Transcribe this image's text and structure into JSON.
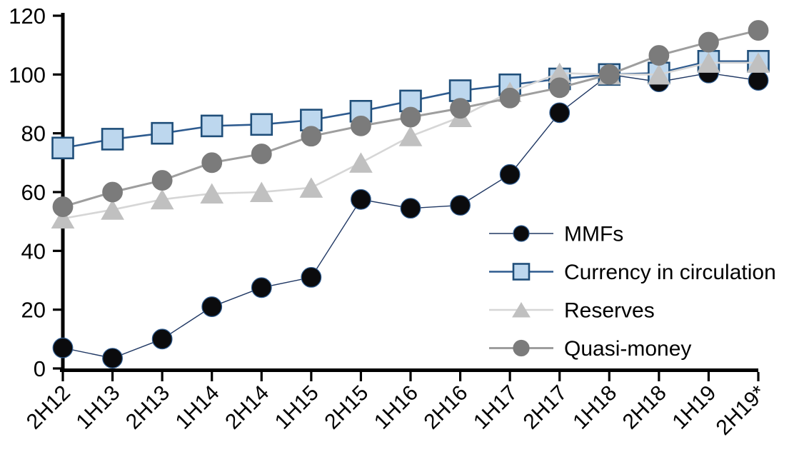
{
  "chart_data": {
    "type": "line",
    "title": "",
    "xlabel": "",
    "ylabel": "",
    "categories": [
      "2H12",
      "1H13",
      "2H13",
      "1H14",
      "2H14",
      "1H15",
      "2H15",
      "1H16",
      "2H16",
      "1H17",
      "2H17",
      "1H18",
      "2H18",
      "1H19",
      "2H19*"
    ],
    "series": [
      {
        "name": "MMFs",
        "marker": "circle",
        "marker_color": "#0b0b0d",
        "marker_edge": "#2E5B8F",
        "line_color": "#203864",
        "line_width": 1.4,
        "values": [
          7,
          3.5,
          10,
          21,
          27.5,
          31,
          57.5,
          54.5,
          55.5,
          66,
          87,
          100,
          97.5,
          100.5,
          98
        ]
      },
      {
        "name": "Currency in circulation",
        "marker": "square",
        "marker_color": "#BDD7EE",
        "marker_edge": "#1F4E79",
        "line_color": "#2E5B8F",
        "line_width": 2.6,
        "values": [
          75,
          78,
          80,
          82.5,
          83,
          84.5,
          87.5,
          91,
          94.5,
          96.5,
          98.5,
          100,
          100.5,
          104.5,
          104.5
        ]
      },
      {
        "name": "Reserves",
        "marker": "triangle",
        "marker_color": "#C0C0C0",
        "marker_edge": "#C0C0C0",
        "line_color": "#D6D6D6",
        "line_width": 2.6,
        "values": [
          51,
          54,
          57.5,
          59.5,
          60,
          61.5,
          70,
          79,
          85.5,
          94,
          100.5,
          100,
          100,
          104,
          104
        ]
      },
      {
        "name": "Quasi-money",
        "marker": "circle",
        "marker_color": "#7B7B7B",
        "marker_edge": "#7B7B7B",
        "line_color": "#9E9E9E",
        "line_width": 3,
        "values": [
          55,
          60,
          64,
          70,
          73,
          79,
          82.5,
          85.5,
          88.5,
          92,
          95.5,
          100,
          106.5,
          111,
          115
        ]
      }
    ],
    "ylim": [
      0,
      120
    ],
    "yticks": [
      0,
      20,
      40,
      60,
      80,
      100,
      120
    ],
    "grid": false,
    "axis_color": "#000000",
    "legend_position": "inside-right",
    "legend_labels": [
      "MMFs",
      "Currency in circulation",
      "Reserves",
      "Quasi-money"
    ]
  }
}
